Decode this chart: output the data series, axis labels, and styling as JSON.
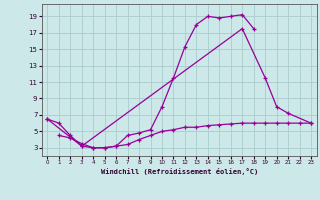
{
  "background_color": "#cce8e8",
  "grid_color": "#aacccc",
  "line_color": "#990099",
  "xlim": [
    -0.5,
    23.5
  ],
  "ylim": [
    2.0,
    20.5
  ],
  "yticks": [
    3,
    5,
    7,
    9,
    11,
    13,
    15,
    17,
    19
  ],
  "xticks": [
    0,
    1,
    2,
    3,
    4,
    5,
    6,
    7,
    8,
    9,
    10,
    11,
    12,
    13,
    14,
    15,
    16,
    17,
    18,
    19,
    20,
    21,
    22,
    23
  ],
  "xlabel": "Windchill (Refroidissement éolien,°C)",
  "line1": {
    "x": [
      0,
      1,
      2,
      3,
      4,
      5,
      6,
      7,
      8,
      9,
      10,
      11,
      12,
      13,
      14,
      15,
      16,
      17,
      18
    ],
    "y": [
      6.5,
      6.0,
      4.5,
      3.2,
      3.0,
      3.0,
      3.2,
      4.5,
      4.8,
      5.2,
      8.0,
      11.5,
      15.3,
      18.0,
      19.0,
      18.8,
      19.0,
      19.2,
      17.5
    ]
  },
  "line2": {
    "x": [
      0,
      3,
      17,
      19,
      20,
      21,
      23
    ],
    "y": [
      6.5,
      3.2,
      17.5,
      11.5,
      8.0,
      7.2,
      6.0
    ]
  },
  "line3": {
    "x": [
      1,
      2,
      3,
      4,
      5,
      6,
      7,
      8,
      9,
      10,
      11,
      12,
      13,
      14,
      15,
      16,
      17,
      18,
      19,
      20,
      21,
      22,
      23
    ],
    "y": [
      4.5,
      4.2,
      3.5,
      3.0,
      3.0,
      3.2,
      3.4,
      4.0,
      4.5,
      5.0,
      5.2,
      5.5,
      5.5,
      5.7,
      5.8,
      5.9,
      6.0,
      6.0,
      6.0,
      6.0,
      6.0,
      6.0,
      6.0
    ]
  }
}
